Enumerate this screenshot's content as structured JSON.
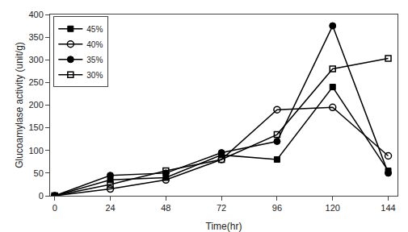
{
  "chart_data": {
    "type": "line",
    "xlabel": "Time(hr)",
    "ylabel": "Glucoamylase activity (unit/g)",
    "x": [
      0,
      24,
      48,
      72,
      96,
      120,
      144
    ],
    "series": [
      {
        "name": "45%",
        "color": "#000000",
        "marker": "square",
        "values": [
          0,
          35,
          40,
          90,
          80,
          240,
          55
        ]
      },
      {
        "name": "40%",
        "color": "#000000",
        "marker": "circle-open",
        "values": [
          0,
          15,
          35,
          80,
          190,
          195,
          88
        ]
      },
      {
        "name": "35%",
        "color": "#000000",
        "marker": "circle",
        "values": [
          0,
          45,
          50,
          95,
          120,
          375,
          50
        ]
      },
      {
        "name": "30%",
        "color": "#000000",
        "marker": "square-open",
        "values": [
          0,
          25,
          55,
          80,
          135,
          280,
          303
        ]
      }
    ],
    "xlim": [
      -2,
      148
    ],
    "ylim": [
      0,
      400
    ],
    "xticks": [
      0,
      24,
      48,
      72,
      96,
      120,
      144
    ],
    "yticks": [
      0,
      50,
      100,
      150,
      200,
      250,
      300,
      350,
      400
    ],
    "legend": "upper left",
    "grid": false
  }
}
